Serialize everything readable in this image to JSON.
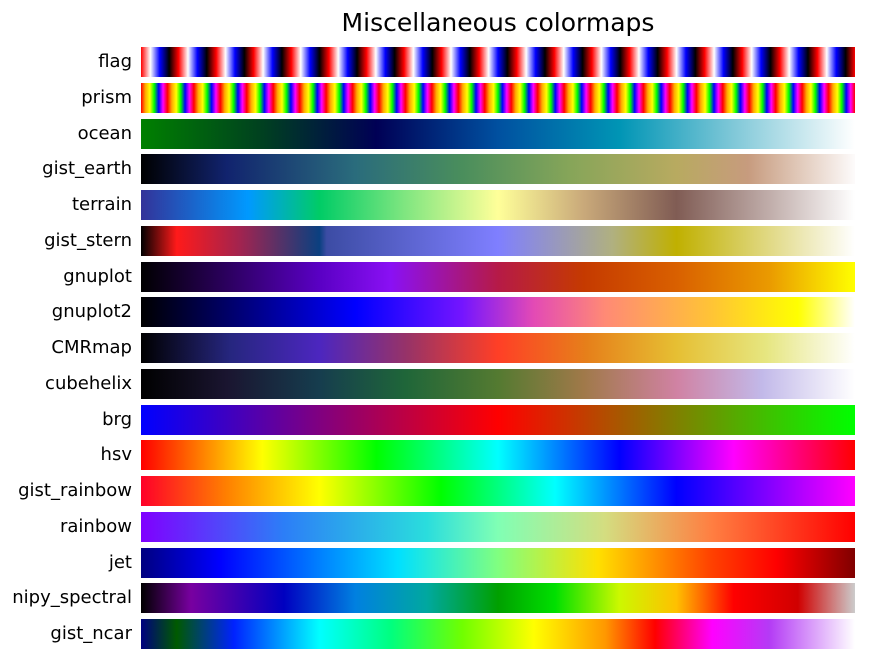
{
  "chart_data": {
    "type": "heatmap",
    "title": "Miscellaneous colormaps",
    "xlabel": "",
    "ylabel": "",
    "gradient_range": [
      0,
      1
    ],
    "colormaps": [
      {
        "name": "flag",
        "stripe_cycles": 19,
        "stripe": [
          "#ff0000",
          "#ffffff",
          "#0000ff",
          "#000000"
        ]
      },
      {
        "name": "prism",
        "stripe_cycles": 27,
        "stripe": [
          "#ff0000",
          "#ffaa00",
          "#ffff00",
          "#00ff00",
          "#0000ff",
          "#ff00ff"
        ]
      },
      {
        "name": "ocean",
        "stops": [
          [
            "#008000",
            0
          ],
          [
            "#004020",
            0.17
          ],
          [
            "#000055",
            0.33
          ],
          [
            "#0050a0",
            0.5
          ],
          [
            "#0095b5",
            0.67
          ],
          [
            "#80c8d8",
            0.83
          ],
          [
            "#ffffff",
            1
          ]
        ]
      },
      {
        "name": "gist_earth",
        "stops": [
          [
            "#000000",
            0
          ],
          [
            "#11236e",
            0.12
          ],
          [
            "#2a6c7c",
            0.3
          ],
          [
            "#4a8e5c",
            0.45
          ],
          [
            "#86a559",
            0.6
          ],
          [
            "#b8aa60",
            0.75
          ],
          [
            "#c79b7e",
            0.85
          ],
          [
            "#fdfbfb",
            1
          ]
        ]
      },
      {
        "name": "terrain",
        "stops": [
          [
            "#333399",
            0
          ],
          [
            "#0099ff",
            0.15
          ],
          [
            "#00cc66",
            0.25
          ],
          [
            "#80e680",
            0.37
          ],
          [
            "#ffff99",
            0.5
          ],
          [
            "#c9a97a",
            0.62
          ],
          [
            "#805c54",
            0.75
          ],
          [
            "#c0adaa",
            0.88
          ],
          [
            "#ffffff",
            1
          ]
        ]
      },
      {
        "name": "gist_stern",
        "stops": [
          [
            "#000000",
            0
          ],
          [
            "#ff1a1a",
            0.05
          ],
          [
            "#a02450",
            0.14
          ],
          [
            "#0a4080",
            0.25
          ],
          [
            "#3c4ca4",
            0.26
          ],
          [
            "#7f7fff",
            0.5
          ],
          [
            "#b0b080",
            0.66
          ],
          [
            "#c0b000",
            0.75
          ],
          [
            "#ffffff",
            1
          ]
        ]
      },
      {
        "name": "gnuplot",
        "stops": [
          [
            "#000000",
            0
          ],
          [
            "#5a00c4",
            0.25
          ],
          [
            "#8a10f4",
            0.35
          ],
          [
            "#b61a47",
            0.5
          ],
          [
            "#c53a00",
            0.62
          ],
          [
            "#d96000",
            0.75
          ],
          [
            "#ea9a00",
            0.88
          ],
          [
            "#ffff00",
            1
          ]
        ]
      },
      {
        "name": "gnuplot2",
        "stops": [
          [
            "#000000",
            0
          ],
          [
            "#000080",
            0.15
          ],
          [
            "#0000ff",
            0.3
          ],
          [
            "#7415ff",
            0.45
          ],
          [
            "#e34ab5",
            0.55
          ],
          [
            "#ff8a75",
            0.65
          ],
          [
            "#ffc435",
            0.8
          ],
          [
            "#ffff00",
            0.92
          ],
          [
            "#ffffff",
            1
          ]
        ]
      },
      {
        "name": "CMRmap",
        "stops": [
          [
            "#000000",
            0
          ],
          [
            "#26267f",
            0.125
          ],
          [
            "#4c26bf",
            0.25
          ],
          [
            "#993366",
            0.375
          ],
          [
            "#ff3f26",
            0.5
          ],
          [
            "#e6801a",
            0.625
          ],
          [
            "#e6bf33",
            0.75
          ],
          [
            "#e6e680",
            0.875
          ],
          [
            "#ffffff",
            1
          ]
        ]
      },
      {
        "name": "cubehelix",
        "stops": [
          [
            "#000000",
            0
          ],
          [
            "#1a1530",
            0.12
          ],
          [
            "#163d4e",
            0.25
          ],
          [
            "#1f6639",
            0.37
          ],
          [
            "#547a31",
            0.5
          ],
          [
            "#a07949",
            0.62
          ],
          [
            "#d082a3",
            0.75
          ],
          [
            "#c2b9e9",
            0.87
          ],
          [
            "#ffffff",
            1
          ]
        ]
      },
      {
        "name": "brg",
        "stops": [
          [
            "#0000ff",
            0
          ],
          [
            "#800080",
            0.25
          ],
          [
            "#ff0000",
            0.5
          ],
          [
            "#808000",
            0.75
          ],
          [
            "#00ff00",
            1
          ]
        ]
      },
      {
        "name": "hsv",
        "stops": [
          [
            "#ff0000",
            0
          ],
          [
            "#ffff00",
            0.17
          ],
          [
            "#00ff00",
            0.33
          ],
          [
            "#00ffff",
            0.5
          ],
          [
            "#0000ff",
            0.67
          ],
          [
            "#ff00ff",
            0.83
          ],
          [
            "#ff0000",
            1
          ]
        ]
      },
      {
        "name": "gist_rainbow",
        "stops": [
          [
            "#ff0029",
            0
          ],
          [
            "#ff8000",
            0.12
          ],
          [
            "#ffff00",
            0.25
          ],
          [
            "#00ff00",
            0.42
          ],
          [
            "#00ffff",
            0.58
          ],
          [
            "#0000ff",
            0.75
          ],
          [
            "#ff00ff",
            1
          ]
        ]
      },
      {
        "name": "rainbow",
        "stops": [
          [
            "#8000ff",
            0
          ],
          [
            "#2c7ef7",
            0.2
          ],
          [
            "#2adddd",
            0.4
          ],
          [
            "#80ffb4",
            0.5
          ],
          [
            "#d4dd80",
            0.65
          ],
          [
            "#ff7e41",
            0.8
          ],
          [
            "#ff0000",
            1
          ]
        ]
      },
      {
        "name": "jet",
        "stops": [
          [
            "#000080",
            0
          ],
          [
            "#0000ff",
            0.11
          ],
          [
            "#0080ff",
            0.25
          ],
          [
            "#00e0ff",
            0.36
          ],
          [
            "#80ff80",
            0.5
          ],
          [
            "#ffe000",
            0.64
          ],
          [
            "#ff4000",
            0.8
          ],
          [
            "#ff0000",
            0.89
          ],
          [
            "#800000",
            1
          ]
        ]
      },
      {
        "name": "nipy_spectral",
        "stops": [
          [
            "#000000",
            0
          ],
          [
            "#7800a0",
            0.07
          ],
          [
            "#0000c0",
            0.2
          ],
          [
            "#0080e0",
            0.3
          ],
          [
            "#00a8a0",
            0.4
          ],
          [
            "#00a000",
            0.5
          ],
          [
            "#00e000",
            0.58
          ],
          [
            "#ccf800",
            0.67
          ],
          [
            "#ffc000",
            0.75
          ],
          [
            "#ff0000",
            0.83
          ],
          [
            "#d00000",
            0.92
          ],
          [
            "#cccccc",
            1
          ]
        ]
      },
      {
        "name": "gist_ncar",
        "stops": [
          [
            "#000080",
            0
          ],
          [
            "#005a00",
            0.05
          ],
          [
            "#0022ff",
            0.13
          ],
          [
            "#00ffff",
            0.25
          ],
          [
            "#00ff7f",
            0.35
          ],
          [
            "#70ff00",
            0.45
          ],
          [
            "#ffff00",
            0.55
          ],
          [
            "#ff9800",
            0.65
          ],
          [
            "#ff0000",
            0.72
          ],
          [
            "#ff00ff",
            0.8
          ],
          [
            "#b43bf5",
            0.88
          ],
          [
            "#ffffff",
            1
          ]
        ]
      }
    ]
  }
}
